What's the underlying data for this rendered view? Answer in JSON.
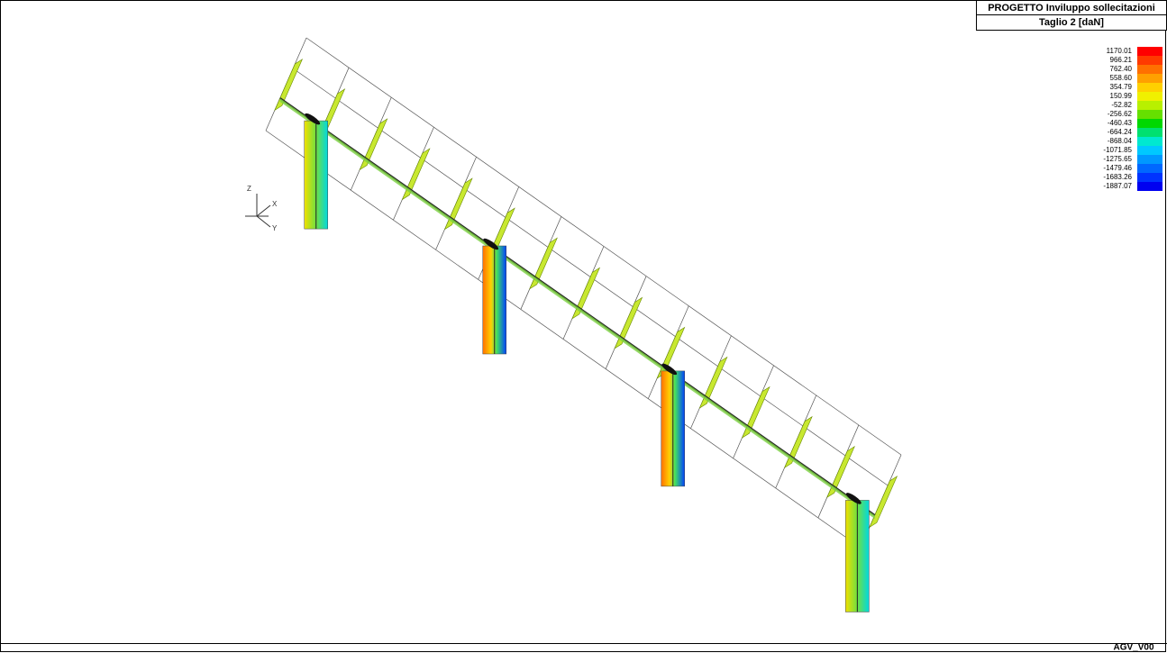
{
  "header": {
    "title": "PROGETTO  Inviluppo sollecitazioni",
    "subtitle": "Taglio 2 [daN]"
  },
  "legend": [
    {
      "label": "1170.01",
      "color": "#ff0000"
    },
    {
      "label": "966.21",
      "color": "#ff3a00"
    },
    {
      "label": "762.40",
      "color": "#ff7000"
    },
    {
      "label": "558.60",
      "color": "#ffa000"
    },
    {
      "label": "354.79",
      "color": "#ffd000"
    },
    {
      "label": "150.99",
      "color": "#f0f000"
    },
    {
      "label": "-52.82",
      "color": "#b8f000"
    },
    {
      "label": "-256.62",
      "color": "#66e000"
    },
    {
      "label": "-460.43",
      "color": "#00d800"
    },
    {
      "label": "-664.24",
      "color": "#00e070"
    },
    {
      "label": "-868.04",
      "color": "#00e8d0"
    },
    {
      "label": "-1071.85",
      "color": "#00c8ff"
    },
    {
      "label": "-1275.65",
      "color": "#0098ff"
    },
    {
      "label": "-1479.46",
      "color": "#0068ff"
    },
    {
      "label": "-1683.26",
      "color": "#0034ff"
    },
    {
      "label": "-1887.07",
      "color": "#0000f0"
    }
  ],
  "axes": {
    "z": "Z",
    "x": "X",
    "y": "Y"
  },
  "footer": "AGV_V00"
}
